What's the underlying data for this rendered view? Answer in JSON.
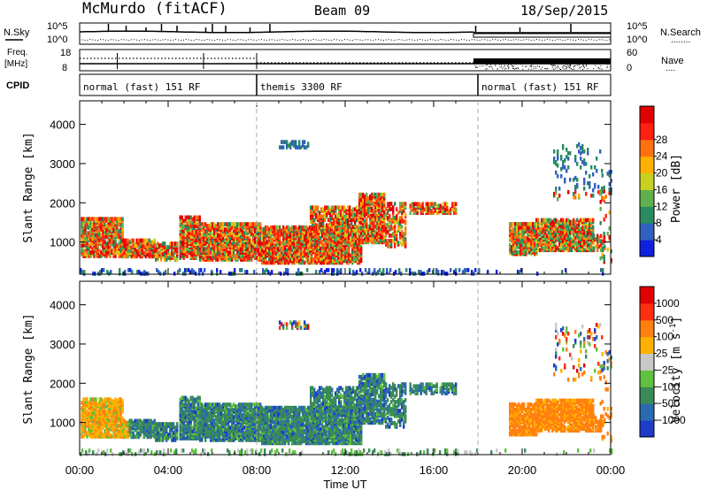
{
  "header": {
    "title": "McMurdo (fitACF)",
    "beam": "Beam 09",
    "date": "18/Sep/2015"
  },
  "nsky_panel": {
    "left_label": "N.Sky",
    "left_top": "10^5",
    "left_bottom": "10^0",
    "right_label": "N.Search",
    "right_top": "10^5",
    "right_bottom": "10^0",
    "right_legend_line": "........"
  },
  "freq_panel": {
    "left_label_1": "Freq.",
    "left_label_2": "[MHz]",
    "left_top": "18",
    "left_bottom": "8",
    "right_label": "Nave",
    "right_top": "60",
    "right_bottom": "0",
    "right_legend_line": "...."
  },
  "cpid_panel": {
    "label": "CPID",
    "segments": [
      {
        "name": "normal (fast) 151 RF",
        "start_h": 0,
        "end_h": 8
      },
      {
        "name": "themis 3300 RF",
        "start_h": 8,
        "end_h": 18
      },
      {
        "name": "normal (fast) 151 RF",
        "start_h": 18,
        "end_h": 24
      }
    ]
  },
  "chart_data": [
    {
      "type": "heatmap",
      "name": "power",
      "ylabel": "Slant Range [km]",
      "ylim": [
        180,
        4600
      ],
      "yticks": [
        1000,
        2000,
        3000,
        4000
      ],
      "xlim_hours": [
        0,
        24
      ],
      "colorbar": {
        "label": "Power [dB]",
        "ticks": [
          "4",
          "8",
          "12",
          "16",
          "20",
          "24",
          "28"
        ],
        "colors": [
          "#1020e0",
          "#3060c0",
          "#2a8a60",
          "#60b050",
          "#c8d020",
          "#ffb000",
          "#ff7010",
          "#ff2010",
          "#e00000"
        ]
      }
    },
    {
      "type": "heatmap",
      "name": "velocity",
      "ylabel": "Slant Range [km]",
      "ylim": [
        180,
        4600
      ],
      "yticks": [
        1000,
        2000,
        3000,
        4000
      ],
      "xlim_hours": [
        0,
        24
      ],
      "colorbar": {
        "label": "Velocity [m s",
        "label_sup": "-1",
        "label_close": "]",
        "ticks": [
          "1000",
          "500",
          "100",
          "25",
          "−25",
          "−100",
          "−500",
          "−1000"
        ],
        "colors": [
          "#1e3cc8",
          "#2a6ab0",
          "#3a8a5a",
          "#60c040",
          "#c8c8c8",
          "#ffb000",
          "#ff8010",
          "#ff3010",
          "#e00000"
        ]
      }
    }
  ],
  "time_axis": {
    "ticks": [
      "00:00",
      "04:00",
      "08:00",
      "12:00",
      "16:00",
      "20:00",
      "00:00"
    ],
    "xlabel": "Time UT"
  }
}
